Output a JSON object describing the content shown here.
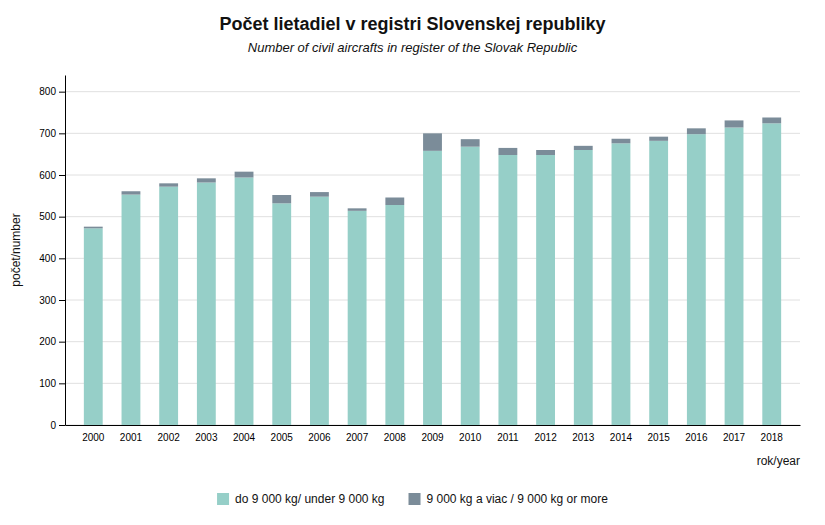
{
  "chart_data": {
    "type": "bar",
    "title": "Počet lietadiel v registri Slovenskej republiky",
    "subtitle": "Number of civil aircrafts in register of the Slovak Republic",
    "ylabel": "počet/number",
    "xlabel": "rok/year",
    "categories": [
      "2000",
      "2001",
      "2002",
      "2003",
      "2004",
      "2005",
      "2006",
      "2007",
      "2008",
      "2009",
      "2010",
      "2011",
      "2012",
      "2013",
      "2014",
      "2015",
      "2016",
      "2017",
      "2018"
    ],
    "series": [
      {
        "name": "do 9 000 kg/ under 9 000 kg",
        "color": "#96cfc8",
        "values": [
          472,
          553,
          572,
          582,
          594,
          532,
          548,
          514,
          528,
          658,
          668,
          648,
          648,
          660,
          676,
          682,
          698,
          714,
          724
        ]
      },
      {
        "name": "9 000 kg a viac / 9 000 kg or more",
        "color": "#7b8c99",
        "values": [
          4,
          8,
          8,
          10,
          14,
          20,
          11,
          6,
          18,
          42,
          18,
          17,
          12,
          10,
          11,
          10,
          14,
          17,
          14
        ]
      }
    ],
    "stacked": true,
    "ylim": [
      0,
      840
    ],
    "yticks": [
      0,
      100,
      200,
      300,
      400,
      500,
      600,
      700,
      800
    ],
    "grid": true,
    "legend": "bottom"
  }
}
